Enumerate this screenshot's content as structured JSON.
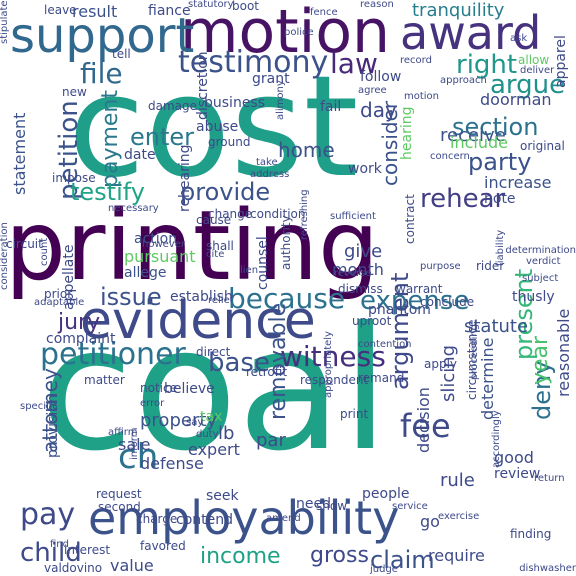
{
  "colors": {
    "background": "#ffffff",
    "palette": [
      "#440154",
      "#3b528b",
      "#21918c",
      "#5ec962",
      "#fde725"
    ]
  },
  "words": [
    {
      "text": "coal",
      "color": "#1fa187"
    },
    {
      "text": "printing",
      "color": "#440154"
    },
    {
      "text": "cost",
      "color": "#1f9e89"
    },
    {
      "text": "employability",
      "color": "#3b528b"
    },
    {
      "text": "evidence",
      "color": "#3e4a89"
    },
    {
      "text": "motion",
      "color": "#471365"
    },
    {
      "text": "support",
      "color": "#31688e"
    },
    {
      "text": "award",
      "color": "#46327e"
    },
    {
      "text": "petitioner",
      "color": "#2c728e"
    },
    {
      "text": "testimony",
      "color": "#3b528b"
    },
    {
      "text": "because",
      "color": "#2c728e"
    },
    {
      "text": "witness",
      "color": "#46307e"
    },
    {
      "text": "expense",
      "color": "#2c728e"
    },
    {
      "text": "section",
      "color": "#2c728e"
    },
    {
      "text": "argue",
      "color": "#21918c"
    },
    {
      "text": "right",
      "color": "#1f988b"
    },
    {
      "text": "law",
      "color": "#482878"
    },
    {
      "text": "file",
      "color": "#31688e"
    },
    {
      "text": "petition",
      "color": "#3b528b"
    },
    {
      "text": "payment",
      "color": "#2a788e"
    },
    {
      "text": "enter",
      "color": "#2a788e"
    },
    {
      "text": "testify",
      "color": "#20a386"
    },
    {
      "text": "provide",
      "color": "#3b528b"
    },
    {
      "text": "party",
      "color": "#3b528b"
    },
    {
      "text": "rehear",
      "color": "#433e85"
    },
    {
      "text": "argument",
      "color": "#3e4a89"
    },
    {
      "text": "present",
      "color": "#35b779"
    },
    {
      "text": "fee",
      "color": "#3e4a89"
    },
    {
      "text": "removable",
      "color": "#3b528b"
    },
    {
      "text": "deny",
      "color": "#2c728e"
    },
    {
      "text": "year",
      "color": "#4ac16d"
    },
    {
      "text": "issue",
      "color": "#3b528b"
    },
    {
      "text": "jury",
      "color": "#46327e"
    },
    {
      "text": "base",
      "color": "#3b528b"
    },
    {
      "text": "ch",
      "color": "#2c728e"
    },
    {
      "text": "pay",
      "color": "#3e4a89"
    },
    {
      "text": "child",
      "color": "#3e4a89"
    },
    {
      "text": "income",
      "color": "#1fa187"
    },
    {
      "text": "claim",
      "color": "#3b528b"
    },
    {
      "text": "gross",
      "color": "#3e4a89"
    },
    {
      "text": "attorney",
      "color": "#3b528b"
    },
    {
      "text": "tranquility",
      "color": "#277f8e"
    },
    {
      "text": "result",
      "color": "#3b528b"
    },
    {
      "text": "fiance",
      "color": "#3e4a89"
    },
    {
      "text": "day",
      "color": "#3e4a89"
    },
    {
      "text": "home",
      "color": "#3b528b"
    },
    {
      "text": "receive",
      "color": "#3b528b"
    },
    {
      "text": "consider",
      "color": "#3b528b"
    },
    {
      "text": "increase",
      "color": "#3b528b"
    },
    {
      "text": "note",
      "color": "#3e4a89"
    },
    {
      "text": "give",
      "color": "#3e4a89"
    },
    {
      "text": "month",
      "color": "#3e4a89"
    },
    {
      "text": "statute",
      "color": "#3b528b"
    },
    {
      "text": "decision",
      "color": "#3e4a89"
    },
    {
      "text": "slicing",
      "color": "#3e4a89"
    },
    {
      "text": "determine",
      "color": "#3b528b"
    },
    {
      "text": "reasonable",
      "color": "#3e4a89"
    },
    {
      "text": "property",
      "color": "#3b528b"
    },
    {
      "text": "expert",
      "color": "#3e4a89"
    },
    {
      "text": "lb",
      "color": "#3e4a89"
    },
    {
      "text": "par",
      "color": "#3e4a89"
    },
    {
      "text": "defense",
      "color": "#3e4a89"
    },
    {
      "text": "sale",
      "color": "#3e4a89"
    },
    {
      "text": "statement",
      "color": "#3b528b"
    },
    {
      "text": "abuse",
      "color": "#3e4a89"
    },
    {
      "text": "date",
      "color": "#3e4a89"
    },
    {
      "text": "rehearing",
      "color": "#3e4a89"
    },
    {
      "text": "action",
      "color": "#3b528b"
    },
    {
      "text": "pursuant",
      "color": "#5ec962"
    },
    {
      "text": "allege",
      "color": "#3b528b"
    },
    {
      "text": "appellate",
      "color": "#3e4a89"
    },
    {
      "text": "establish",
      "color": "#3e4a89"
    },
    {
      "text": "complaint",
      "color": "#3e4a89"
    },
    {
      "text": "matter",
      "color": "#3e4a89"
    },
    {
      "text": "believe",
      "color": "#3e4a89"
    },
    {
      "text": "provision",
      "color": "#3b528b"
    },
    {
      "text": "value",
      "color": "#3e4a89"
    },
    {
      "text": "valdovino",
      "color": "#3e4a89"
    },
    {
      "text": "interest",
      "color": "#3e4a89"
    },
    {
      "text": "require",
      "color": "#3e4a89"
    },
    {
      "text": "rule",
      "color": "#3e4a89"
    },
    {
      "text": "good",
      "color": "#3e4a89"
    },
    {
      "text": "review",
      "color": "#3e4a89"
    },
    {
      "text": "people",
      "color": "#3e4a89"
    },
    {
      "text": "need",
      "color": "#3e4a89"
    },
    {
      "text": "contend",
      "color": "#3e4a89"
    },
    {
      "text": "seek",
      "color": "#3e4a89"
    },
    {
      "text": "work",
      "color": "#3e4a89"
    },
    {
      "text": "fail",
      "color": "#3e4a89"
    },
    {
      "text": "follow",
      "color": "#3e4a89"
    },
    {
      "text": "include",
      "color": "#5ec962"
    },
    {
      "text": "doorman",
      "color": "#3e4a89"
    },
    {
      "text": "business",
      "color": "#3e4a89"
    },
    {
      "text": "grant",
      "color": "#3e4a89"
    },
    {
      "text": "damage",
      "color": "#3e4a89"
    },
    {
      "text": "discretion",
      "color": "#3e4a89"
    },
    {
      "text": "apparel",
      "color": "#3e4a89"
    },
    {
      "text": "leave",
      "color": "#3e4a89"
    },
    {
      "text": "boot",
      "color": "#3e4a89"
    },
    {
      "text": "tell",
      "color": "#3e4a89"
    },
    {
      "text": "new",
      "color": "#3e4a89"
    },
    {
      "text": "impose",
      "color": "#3e4a89"
    },
    {
      "text": "circuit",
      "color": "#3e4a89"
    },
    {
      "text": "ground",
      "color": "#3e4a89"
    },
    {
      "text": "address",
      "color": "#3e4a89"
    },
    {
      "text": "take",
      "color": "#3e4a89"
    },
    {
      "text": "condition",
      "color": "#3e4a89"
    },
    {
      "text": "change",
      "color": "#3e4a89"
    },
    {
      "text": "cause",
      "color": "#3e4a89"
    },
    {
      "text": "shall",
      "color": "#3e4a89"
    },
    {
      "text": "however",
      "color": "#3e4a89"
    },
    {
      "text": "counsel",
      "color": "#3e4a89"
    },
    {
      "text": "dismiss",
      "color": "#3e4a89"
    },
    {
      "text": "warrant",
      "color": "#3e4a89"
    },
    {
      "text": "reverse",
      "color": "#3e4a89"
    },
    {
      "text": "contract",
      "color": "#3e4a89"
    },
    {
      "text": "liability",
      "color": "#3e4a89"
    },
    {
      "text": "purpose",
      "color": "#3e4a89"
    },
    {
      "text": "rider",
      "color": "#3e4a89"
    },
    {
      "text": "verdict",
      "color": "#3e4a89"
    },
    {
      "text": "conclude",
      "color": "#3e4a89"
    },
    {
      "text": "thusly",
      "color": "#3e4a89"
    },
    {
      "text": "subject",
      "color": "#3e4a89"
    },
    {
      "text": "phantom",
      "color": "#3e4a89"
    },
    {
      "text": "apply",
      "color": "#3e4a89"
    },
    {
      "text": "remand",
      "color": "#3e4a89"
    },
    {
      "text": "respondent",
      "color": "#3e4a89"
    },
    {
      "text": "circumstance",
      "color": "#3e4a89"
    },
    {
      "text": "tax",
      "color": "#5ec962"
    },
    {
      "text": "direct",
      "color": "#3e4a89"
    },
    {
      "text": "notice",
      "color": "#3e4a89"
    },
    {
      "text": "error",
      "color": "#3e4a89"
    },
    {
      "text": "retrofit",
      "color": "#3e4a89"
    },
    {
      "text": "request",
      "color": "#3e4a89"
    },
    {
      "text": "second",
      "color": "#3e4a89"
    },
    {
      "text": "print",
      "color": "#3e4a89"
    },
    {
      "text": "charge",
      "color": "#3e4a89"
    },
    {
      "text": "favored",
      "color": "#3e4a89"
    },
    {
      "text": "finding",
      "color": "#3e4a89"
    },
    {
      "text": "judge",
      "color": "#3e4a89"
    },
    {
      "text": "service",
      "color": "#3e4a89"
    },
    {
      "text": "go",
      "color": "#3e4a89"
    },
    {
      "text": "show",
      "color": "#3e4a89"
    },
    {
      "text": "amend",
      "color": "#3e4a89"
    },
    {
      "text": "accordingly",
      "color": "#3e4a89"
    },
    {
      "text": "dishwasher",
      "color": "#3e4a89"
    },
    {
      "text": "reason",
      "color": "#3e4a89"
    },
    {
      "text": "police",
      "color": "#3e4a89"
    },
    {
      "text": "ask",
      "color": "#3e4a89"
    },
    {
      "text": "record",
      "color": "#3e4a89"
    },
    {
      "text": "approach",
      "color": "#3e4a89"
    },
    {
      "text": "allow",
      "color": "#5ec962"
    },
    {
      "text": "deliver",
      "color": "#3e4a89"
    },
    {
      "text": "agree",
      "color": "#3e4a89"
    },
    {
      "text": "original",
      "color": "#3e4a89"
    },
    {
      "text": "concern",
      "color": "#3e4a89"
    },
    {
      "text": "hearing",
      "color": "#5ec962"
    },
    {
      "text": "sufficient",
      "color": "#3e4a89"
    },
    {
      "text": "authority",
      "color": "#3e4a89"
    },
    {
      "text": "refreshing",
      "color": "#3e4a89"
    },
    {
      "text": "uproot",
      "color": "#3e4a89"
    },
    {
      "text": "contention",
      "color": "#3e4a89"
    },
    {
      "text": "determination",
      "color": "#3e4a89"
    },
    {
      "text": "necessary",
      "color": "#3e4a89"
    },
    {
      "text": "adaptable",
      "color": "#3e4a89"
    },
    {
      "text": "consideration",
      "color": "#3e4a89"
    },
    {
      "text": "prior",
      "color": "#3e4a89"
    },
    {
      "text": "statutory",
      "color": "#3e4a89"
    },
    {
      "text": "alimony",
      "color": "#3e4a89"
    },
    {
      "text": "lien",
      "color": "#3e4a89"
    },
    {
      "text": "count",
      "color": "#3e4a89"
    },
    {
      "text": "cite",
      "color": "#3e4a89"
    },
    {
      "text": "say",
      "color": "#3e4a89"
    },
    {
      "text": "duty",
      "color": "#3e4a89"
    },
    {
      "text": "return",
      "color": "#3e4a89"
    },
    {
      "text": "specific",
      "color": "#3e4a89"
    },
    {
      "text": "proceeding",
      "color": "#3e4a89"
    },
    {
      "text": "exercise",
      "color": "#3e4a89"
    },
    {
      "text": "stipulate",
      "color": "#3e4a89"
    },
    {
      "text": "inform",
      "color": "#3e4a89"
    },
    {
      "text": "relief",
      "color": "#3e4a89"
    },
    {
      "text": "find",
      "color": "#3e4a89"
    },
    {
      "text": "appropriately",
      "color": "#3e4a89"
    },
    {
      "text": "motion",
      "color": "#3e4a89"
    },
    {
      "text": "affirm",
      "color": "#3e4a89"
    },
    {
      "text": "fence",
      "color": "#3e4a89"
    }
  ]
}
